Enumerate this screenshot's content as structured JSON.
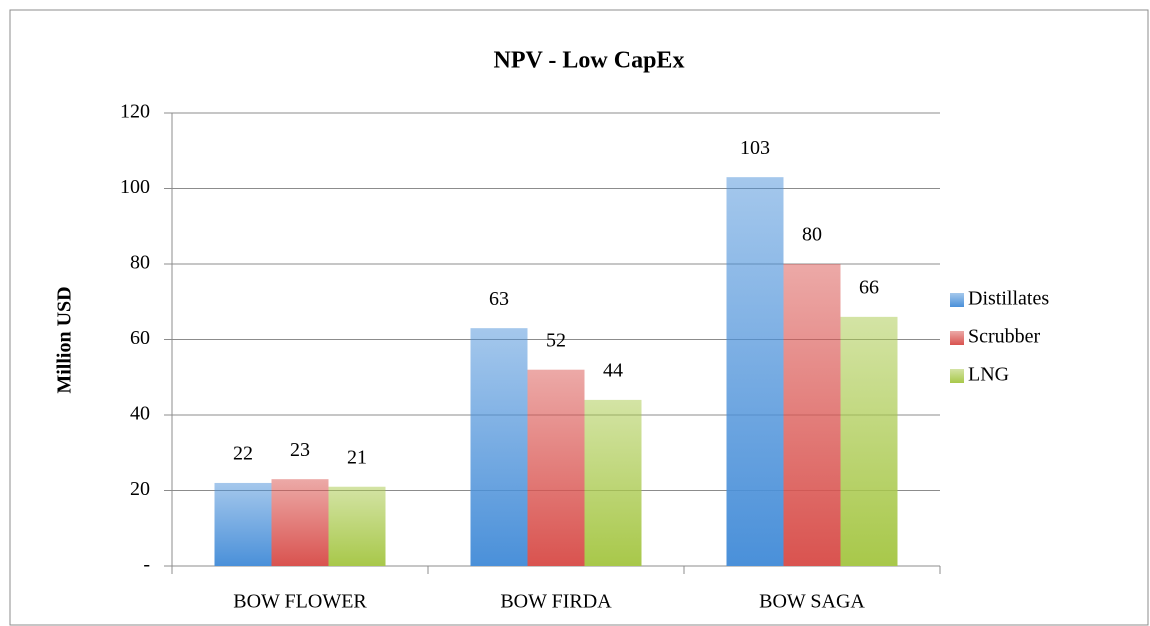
{
  "chart_data": {
    "type": "bar",
    "title": "NPV - Low CapEx",
    "y_label": "Million USD",
    "categories": [
      "BOW FLOWER",
      "BOW FIRDA",
      "BOW SAGA"
    ],
    "series": [
      {
        "name": "Distillates",
        "color": "#4a90d9",
        "values": [
          22,
          63,
          103
        ]
      },
      {
        "name": "Scrubber",
        "color": "#d9534f",
        "values": [
          23,
          52,
          80
        ]
      },
      {
        "name": "LNG",
        "color": "#a8c84a",
        "values": [
          21,
          44,
          66
        ]
      }
    ],
    "ylim": [
      0,
      120
    ],
    "yticks": [
      {
        "value": 0,
        "label": "-"
      },
      20,
      40,
      60,
      80,
      100,
      120
    ],
    "grid": true,
    "legend": "right"
  }
}
